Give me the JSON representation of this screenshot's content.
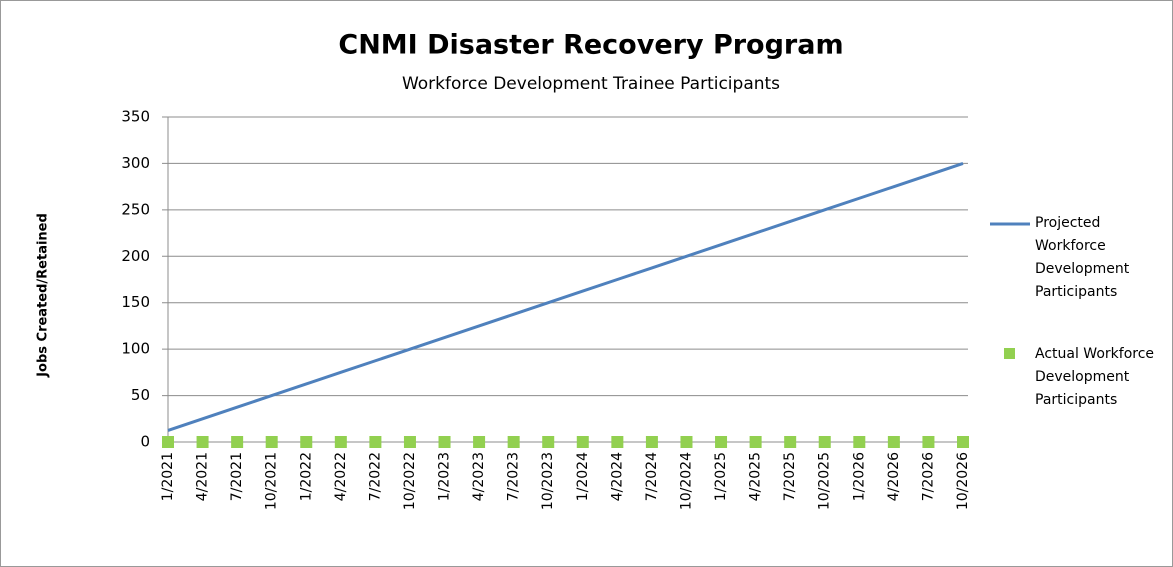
{
  "chart_data": {
    "type": "line",
    "title": "CNMI Disaster Recovery Program",
    "subtitle": "Workforce  Development Trainee Participants",
    "y_label": "Jobs Created/Retained",
    "categories": [
      "1/2021",
      "4/2021",
      "7/2021",
      "10/2021",
      "1/2022",
      "4/2022",
      "7/2022",
      "10/2022",
      "1/2023",
      "4/2023",
      "7/2023",
      "10/2023",
      "1/2024",
      "4/2024",
      "7/2024",
      "10/2024",
      "1/2025",
      "4/2025",
      "7/2025",
      "10/2025",
      "1/2026",
      "4/2026",
      "7/2026",
      "10/2026"
    ],
    "series": [
      {
        "name": "Projected Workforce Development Participants",
        "color": "#4f81bd",
        "mode": "line",
        "values": [
          12.5,
          25,
          37.5,
          50,
          62.5,
          75,
          87.5,
          100,
          112.5,
          125,
          137.5,
          150,
          162.5,
          175,
          187.5,
          200,
          212.5,
          225,
          237.5,
          250,
          262.5,
          275,
          287.5,
          300
        ]
      },
      {
        "name": "Actual Workforce Development Participants",
        "color": "#92d050",
        "mode": "markers",
        "values": [
          0,
          0,
          0,
          0,
          0,
          0,
          0,
          0,
          0,
          0,
          0,
          0,
          0,
          0,
          0,
          0,
          0,
          0,
          0,
          0,
          0,
          0,
          0,
          0
        ]
      }
    ],
    "ylim": [
      0,
      350
    ],
    "yticks": [
      0,
      50,
      100,
      150,
      200,
      250,
      300,
      350
    ],
    "grid": true,
    "legend": "right"
  }
}
